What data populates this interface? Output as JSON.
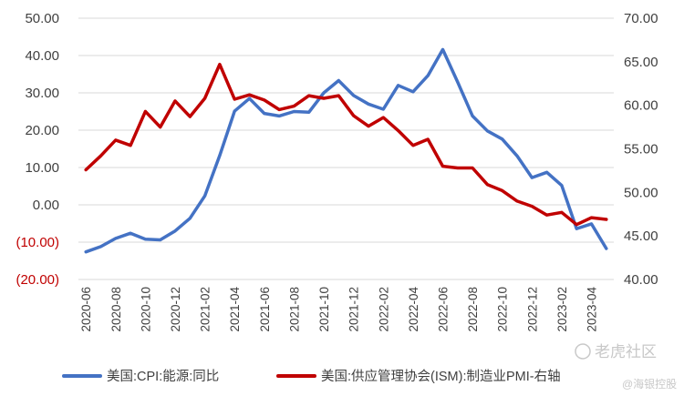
{
  "chart_data": {
    "type": "line",
    "x": [
      "2020-06",
      "2020-07",
      "2020-08",
      "2020-09",
      "2020-10",
      "2020-11",
      "2020-12",
      "2021-01",
      "2021-02",
      "2021-03",
      "2021-04",
      "2021-05",
      "2021-06",
      "2021-07",
      "2021-08",
      "2021-09",
      "2021-10",
      "2021-11",
      "2021-12",
      "2022-01",
      "2022-02",
      "2022-03",
      "2022-04",
      "2022-05",
      "2022-06",
      "2022-07",
      "2022-08",
      "2022-09",
      "2022-10",
      "2022-11",
      "2022-12",
      "2023-01",
      "2023-02",
      "2023-03",
      "2023-04",
      "2023-05"
    ],
    "x_tick_labels": [
      "2020-06",
      "2020-08",
      "2020-10",
      "2020-12",
      "2021-02",
      "2021-04",
      "2021-06",
      "2021-08",
      "2021-10",
      "2021-12",
      "2022-02",
      "2022-04",
      "2022-06",
      "2022-08",
      "2022-10",
      "2022-12",
      "2023-02",
      "2023-04"
    ],
    "series": [
      {
        "name": "美国:CPI:能源:同比",
        "axis": "left",
        "color": "#4472c4",
        "values": [
          -12.6,
          -11.2,
          -9.0,
          -7.6,
          -9.2,
          -9.4,
          -7.0,
          -3.6,
          2.4,
          13.2,
          25.1,
          28.5,
          24.5,
          23.8,
          25.0,
          24.8,
          30.0,
          33.3,
          29.3,
          27.0,
          25.6,
          32.0,
          30.3,
          34.6,
          41.6,
          32.9,
          23.8,
          19.8,
          17.6,
          13.1,
          7.3,
          8.7,
          5.2,
          -6.4,
          -5.1,
          -11.7
        ]
      },
      {
        "name": "美国:供应管理协会(ISM):制造业PMI-右轴",
        "axis": "right",
        "color": "#c00000",
        "values": [
          52.6,
          54.2,
          56.0,
          55.4,
          59.3,
          57.5,
          60.5,
          58.7,
          60.8,
          64.7,
          60.7,
          61.2,
          60.6,
          59.5,
          59.9,
          61.1,
          60.8,
          61.1,
          58.8,
          57.6,
          58.6,
          57.1,
          55.4,
          56.1,
          53.0,
          52.8,
          52.8,
          50.9,
          50.2,
          49.0,
          48.4,
          47.4,
          47.7,
          46.3,
          47.1,
          46.9
        ]
      }
    ],
    "y_left": {
      "min": -20,
      "max": 50,
      "step": 10,
      "tick_labels": [
        "(20.00)",
        "(10.00)",
        "0.00",
        "10.00",
        "20.00",
        "30.00",
        "40.00",
        "50.00"
      ],
      "negative_color": "#c00000",
      "positive_color": "#404040"
    },
    "y_right": {
      "min": 40,
      "max": 70,
      "step": 5,
      "tick_labels": [
        "40.00",
        "45.00",
        "50.00",
        "55.00",
        "60.00",
        "65.00",
        "70.00"
      ]
    },
    "grid": true,
    "legend_position": "bottom"
  },
  "watermark": {
    "glyph": "℗",
    "line1": "老虎社区",
    "line2": "@海银控股"
  }
}
